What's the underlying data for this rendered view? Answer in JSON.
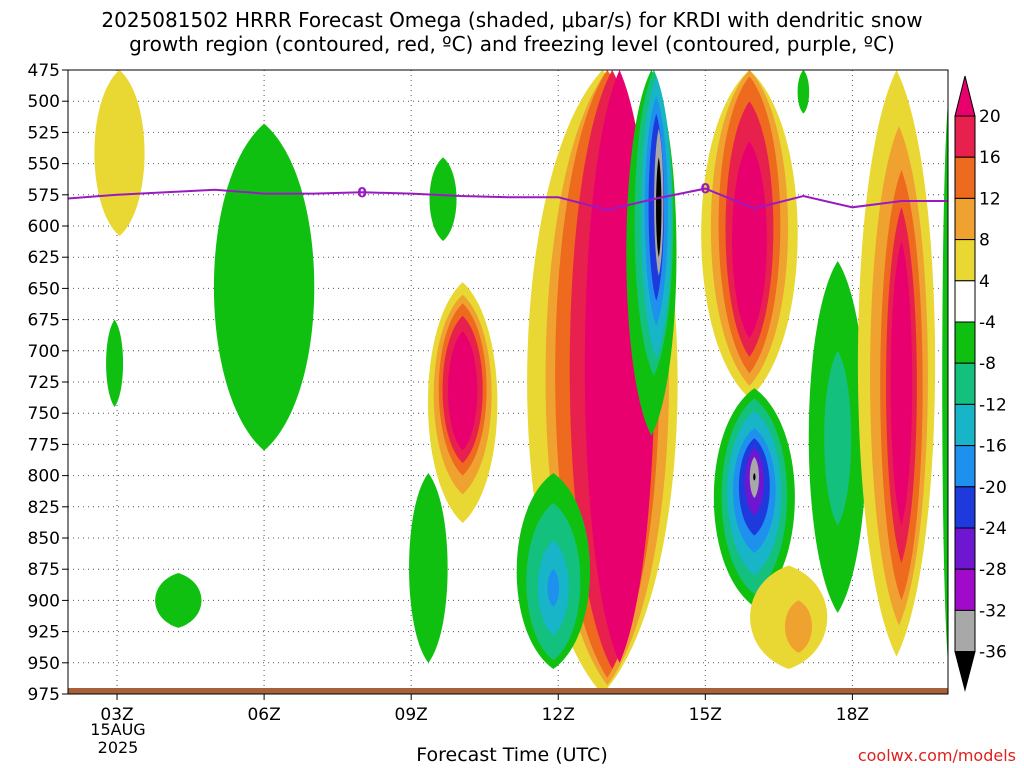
{
  "title_line_1": "2025081502 HRRR Forecast Omega (shaded, μbar/s) for KRDI with dendritic snow",
  "title_line_2": "growth region (contoured, red, ºC) and freezing level (contoured, purple, ºC)",
  "xlabel": "Forecast Time (UTC)",
  "credit": "coolwx.com/models",
  "date_label": [
    "15AUG",
    "2025"
  ],
  "chart_data": {
    "type": "heatmap",
    "title": "2025081502 HRRR Forecast Omega (shaded, μbar/s) for KRDI with dendritic snow growth region (contoured, red, ºC) and freezing level (contoured, purple, ºC)",
    "xlabel": "Forecast Time (UTC)",
    "ylabel": "",
    "y_inverted": true,
    "x_ticks": [
      {
        "hour": 3,
        "label": "03Z"
      },
      {
        "hour": 6,
        "label": "06Z"
      },
      {
        "hour": 9,
        "label": "09Z"
      },
      {
        "hour": 12,
        "label": "12Z"
      },
      {
        "hour": 15,
        "label": "15Z"
      },
      {
        "hour": 18,
        "label": "18Z"
      }
    ],
    "xlim": [
      2.0,
      19.95
    ],
    "y_ticks": [
      475,
      500,
      525,
      550,
      575,
      600,
      625,
      650,
      675,
      700,
      725,
      750,
      775,
      800,
      825,
      850,
      875,
      900,
      925,
      950,
      975
    ],
    "ylim": [
      475,
      975
    ],
    "grid": true,
    "colorbar": {
      "labels": [
        "20",
        "16",
        "12",
        "8",
        "4",
        "-4",
        "-8",
        "-12",
        "-16",
        "-20",
        "-24",
        "-28",
        "-32",
        "-36"
      ],
      "colors": [
        "#e8006e",
        "#e8204e",
        "#ee6a1e",
        "#f0a230",
        "#e9d834",
        "#ffffff",
        "#10c010",
        "#14c07e",
        "#18b4c8",
        "#1e90ee",
        "#1e3adc",
        "#6e16d0",
        "#a00ac8",
        "#a8a8a8",
        "#000000"
      ]
    },
    "terrain_color": "#a8603a",
    "freezing_level": {
      "color": "#9a1ac2",
      "label": "0",
      "points": [
        {
          "hour": 2.0,
          "p": 578
        },
        {
          "hour": 3.0,
          "p": 575
        },
        {
          "hour": 4.0,
          "p": 573
        },
        {
          "hour": 5.0,
          "p": 571
        },
        {
          "hour": 6.0,
          "p": 574
        },
        {
          "hour": 7.0,
          "p": 574
        },
        {
          "hour": 8.0,
          "p": 573
        },
        {
          "hour": 9.0,
          "p": 574
        },
        {
          "hour": 10.0,
          "p": 576
        },
        {
          "hour": 11.0,
          "p": 577
        },
        {
          "hour": 12.0,
          "p": 577
        },
        {
          "hour": 13.0,
          "p": 587
        },
        {
          "hour": 14.0,
          "p": 578
        },
        {
          "hour": 15.0,
          "p": 570
        },
        {
          "hour": 16.0,
          "p": 586
        },
        {
          "hour": 17.0,
          "p": 576
        },
        {
          "hour": 18.0,
          "p": 585
        },
        {
          "hour": 19.0,
          "p": 580
        },
        {
          "hour": 19.95,
          "p": 580
        }
      ]
    },
    "regions": [
      {
        "value": 4,
        "hour": 3.05,
        "p_top": 475,
        "p_bottom": 608,
        "hw": 0.65
      },
      {
        "value": -8,
        "hour": 6.0,
        "p_top": 518,
        "p_bottom": 780,
        "hw": 1.3
      },
      {
        "value": -8,
        "hour": 2.95,
        "p_top": 675,
        "p_bottom": 745,
        "hw": 0.22
      },
      {
        "value": -8,
        "hour": 4.25,
        "p_top": 878,
        "p_bottom": 922,
        "hw": 0.6
      },
      {
        "value": -8,
        "hour": 9.65,
        "p_top": 545,
        "p_bottom": 612,
        "hw": 0.35
      },
      {
        "value": -8,
        "hour": 9.35,
        "p_top": 798,
        "p_bottom": 950,
        "hw": 0.5
      },
      {
        "value": 4,
        "hour": 10.05,
        "p_top": 645,
        "p_bottom": 838,
        "hw": 0.9
      },
      {
        "value": 8,
        "hour": 10.05,
        "p_top": 655,
        "p_bottom": 815,
        "hw": 0.75
      },
      {
        "value": 12,
        "hour": 10.05,
        "p_top": 662,
        "p_bottom": 800,
        "hw": 0.62
      },
      {
        "value": 16,
        "hour": 10.05,
        "p_top": 672,
        "p_bottom": 790,
        "hw": 0.52
      },
      {
        "value": 20,
        "hour": 10.05,
        "p_top": 684,
        "p_bottom": 780,
        "hw": 0.38
      },
      {
        "value": 4,
        "hour": 12.9,
        "p_top": 475,
        "p_bottom": 975,
        "hw": 1.95
      },
      {
        "value": 8,
        "hour": 13.0,
        "p_top": 475,
        "p_bottom": 968,
        "hw": 1.6
      },
      {
        "value": 12,
        "hour": 13.0,
        "p_top": 475,
        "p_bottom": 962,
        "hw": 1.35
      },
      {
        "value": 16,
        "hour": 13.1,
        "p_top": 475,
        "p_bottom": 955,
        "hw": 1.1
      },
      {
        "value": 20,
        "hour": 13.25,
        "p_top": 475,
        "p_bottom": 950,
        "hw": 0.9
      },
      {
        "value": -8,
        "hour": 11.9,
        "p_top": 798,
        "p_bottom": 955,
        "hw": 0.95
      },
      {
        "value": -12,
        "hour": 11.9,
        "p_top": 822,
        "p_bottom": 948,
        "hw": 0.7
      },
      {
        "value": -16,
        "hour": 11.9,
        "p_top": 852,
        "p_bottom": 928,
        "hw": 0.4
      },
      {
        "value": -20,
        "hour": 11.9,
        "p_top": 875,
        "p_bottom": 905,
        "hw": 0.15
      },
      {
        "value": -8,
        "hour": 13.9,
        "p_top": 475,
        "p_bottom": 768,
        "hw": 0.65
      },
      {
        "value": -12,
        "hour": 13.95,
        "p_top": 475,
        "p_bottom": 720,
        "hw": 0.5
      },
      {
        "value": -16,
        "hour": 14.0,
        "p_top": 480,
        "p_bottom": 706,
        "hw": 0.4
      },
      {
        "value": -20,
        "hour": 14.0,
        "p_top": 496,
        "p_bottom": 680,
        "hw": 0.3
      },
      {
        "value": -24,
        "hour": 14.0,
        "p_top": 510,
        "p_bottom": 660,
        "hw": 0.2
      },
      {
        "value": -32,
        "hour": 14.05,
        "p_top": 522,
        "p_bottom": 640,
        "hw": 0.12
      },
      {
        "value": -36,
        "hour": 14.05,
        "p_top": 545,
        "p_bottom": 625,
        "hw": 0.07
      },
      {
        "value": 4,
        "hour": 15.9,
        "p_top": 475,
        "p_bottom": 738,
        "hw": 1.25
      },
      {
        "value": 8,
        "hour": 15.9,
        "p_top": 475,
        "p_bottom": 728,
        "hw": 1.0
      },
      {
        "value": 12,
        "hour": 15.9,
        "p_top": 480,
        "p_bottom": 718,
        "hw": 0.8
      },
      {
        "value": 16,
        "hour": 15.9,
        "p_top": 500,
        "p_bottom": 705,
        "hw": 0.62
      },
      {
        "value": 20,
        "hour": 15.9,
        "p_top": 532,
        "p_bottom": 690,
        "hw": 0.45
      },
      {
        "value": -8,
        "hour": 16.0,
        "p_top": 730,
        "p_bottom": 905,
        "hw": 1.05
      },
      {
        "value": -12,
        "hour": 16.0,
        "p_top": 738,
        "p_bottom": 895,
        "hw": 0.85
      },
      {
        "value": -16,
        "hour": 16.0,
        "p_top": 748,
        "p_bottom": 880,
        "hw": 0.7
      },
      {
        "value": -20,
        "hour": 16.0,
        "p_top": 762,
        "p_bottom": 862,
        "hw": 0.55
      },
      {
        "value": -24,
        "hour": 16.0,
        "p_top": 770,
        "p_bottom": 848,
        "hw": 0.4
      },
      {
        "value": -28,
        "hour": 16.0,
        "p_top": 778,
        "p_bottom": 832,
        "hw": 0.25
      },
      {
        "value": -32,
        "hour": 16.0,
        "p_top": 785,
        "p_bottom": 818,
        "hw": 0.12
      },
      {
        "value": -36,
        "hour": 16.0,
        "p_top": 798,
        "p_bottom": 804,
        "hw": 0.03
      },
      {
        "value": -8,
        "hour": 17.0,
        "p_top": 475,
        "p_bottom": 510,
        "hw": 0.15
      },
      {
        "value": -8,
        "hour": 17.7,
        "p_top": 628,
        "p_bottom": 910,
        "hw": 0.75
      },
      {
        "value": -12,
        "hour": 17.7,
        "p_top": 700,
        "p_bottom": 840,
        "hw": 0.35
      },
      {
        "value": 4,
        "hour": 16.7,
        "p_top": 872,
        "p_bottom": 955,
        "hw": 1.0
      },
      {
        "value": 8,
        "hour": 16.9,
        "p_top": 900,
        "p_bottom": 942,
        "hw": 0.35
      },
      {
        "value": 4,
        "hour": 18.9,
        "p_top": 475,
        "p_bottom": 945,
        "hw": 1.0
      },
      {
        "value": 8,
        "hour": 18.95,
        "p_top": 520,
        "p_bottom": 920,
        "hw": 0.75
      },
      {
        "value": 12,
        "hour": 19.0,
        "p_top": 555,
        "p_bottom": 900,
        "hw": 0.55
      },
      {
        "value": 16,
        "hour": 19.0,
        "p_top": 585,
        "p_bottom": 870,
        "hw": 0.4
      },
      {
        "value": 20,
        "hour": 19.0,
        "p_top": 612,
        "p_bottom": 840,
        "hw": 0.28
      },
      {
        "value": -8,
        "hour": 19.95,
        "p_top": 500,
        "p_bottom": 950,
        "hw": 0.15
      }
    ]
  }
}
